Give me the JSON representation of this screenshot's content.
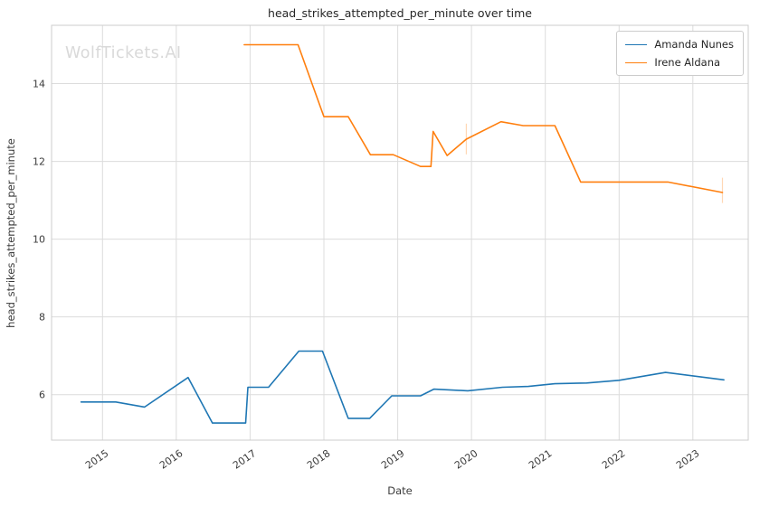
{
  "watermark": {
    "text": "WolfTickets.AI"
  },
  "chart_data": {
    "type": "line",
    "title": "head_strikes_attempted_per_minute over time",
    "xlabel": "Date",
    "ylabel": "head_strikes_attempted_per_minute",
    "x_ticks": [
      2015,
      2016,
      2017,
      2018,
      2019,
      2020,
      2021,
      2022,
      2023
    ],
    "y_ticks": [
      6,
      8,
      10,
      12,
      14
    ],
    "x_range": [
      2014.31,
      2023.75
    ],
    "y_range": [
      4.83,
      15.5
    ],
    "grid": true,
    "legend_position": "upper right",
    "colors": {
      "grid": "#dcdcdc",
      "spine": "#cccccc",
      "title_text": "#262626",
      "tick_text": "#3b3b3b",
      "watermark": "#d9d9d9"
    },
    "series": [
      {
        "name": "Amanda Nunes",
        "color": "#1f77b4",
        "points": [
          [
            2014.71,
            5.81
          ],
          [
            2015.18,
            5.81
          ],
          [
            2015.57,
            5.68
          ],
          [
            2016.16,
            6.44
          ],
          [
            2016.49,
            5.27
          ],
          [
            2016.94,
            5.27
          ],
          [
            2016.97,
            6.19
          ],
          [
            2017.25,
            6.19
          ],
          [
            2017.66,
            7.12
          ],
          [
            2017.98,
            7.12
          ],
          [
            2018.33,
            5.39
          ],
          [
            2018.62,
            5.39
          ],
          [
            2018.92,
            5.97
          ],
          [
            2019.31,
            5.97
          ],
          [
            2019.49,
            6.14
          ],
          [
            2019.95,
            6.1
          ],
          [
            2020.42,
            6.19
          ],
          [
            2020.77,
            6.21
          ],
          [
            2021.13,
            6.28
          ],
          [
            2021.56,
            6.3
          ],
          [
            2022.0,
            6.37
          ],
          [
            2022.63,
            6.57
          ],
          [
            2023.42,
            6.38
          ]
        ],
        "error_bars": []
      },
      {
        "name": "Irene Aldana",
        "color": "#ff7f0e",
        "points": [
          [
            2016.92,
            15.0
          ],
          [
            2017.65,
            15.0
          ],
          [
            2018.0,
            13.15
          ],
          [
            2018.33,
            13.15
          ],
          [
            2018.63,
            12.17
          ],
          [
            2018.94,
            12.17
          ],
          [
            2019.31,
            11.87
          ],
          [
            2019.45,
            11.87
          ],
          [
            2019.48,
            12.77
          ],
          [
            2019.67,
            12.15
          ],
          [
            2019.93,
            12.57
          ],
          [
            2020.4,
            13.02
          ],
          [
            2020.7,
            12.92
          ],
          [
            2021.13,
            12.92
          ],
          [
            2021.48,
            11.47
          ],
          [
            2022.0,
            11.47
          ],
          [
            2022.66,
            11.47
          ],
          [
            2023.4,
            11.2
          ]
        ],
        "error_bars": [
          {
            "x": 2019.93,
            "low": 12.18,
            "high": 12.97
          },
          {
            "x": 2023.4,
            "low": 10.93,
            "high": 11.58
          }
        ]
      }
    ]
  }
}
